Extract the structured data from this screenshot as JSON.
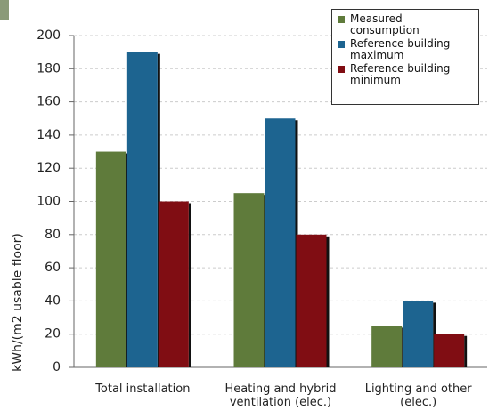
{
  "chart_data": {
    "type": "bar",
    "y_label": "kWh/(m2 usable floor)",
    "categories": [
      "Total installation",
      "Heating and hybrid ventilation (elec.)",
      "Lighting and other (elec.)"
    ],
    "series": [
      {
        "name": "Measured consumption",
        "color": "#5f7b3b",
        "values": [
          130,
          105,
          25
        ]
      },
      {
        "name": "Reference building maximum",
        "color": "#1d6490",
        "values": [
          190,
          150,
          40
        ]
      },
      {
        "name": "Reference building minimum",
        "color": "#800d13",
        "values": [
          100,
          80,
          20
        ]
      }
    ],
    "ylim": [
      0,
      200
    ],
    "yticks": [
      0,
      20,
      40,
      60,
      80,
      100,
      120,
      140,
      160,
      180,
      200
    ],
    "grid": true
  }
}
